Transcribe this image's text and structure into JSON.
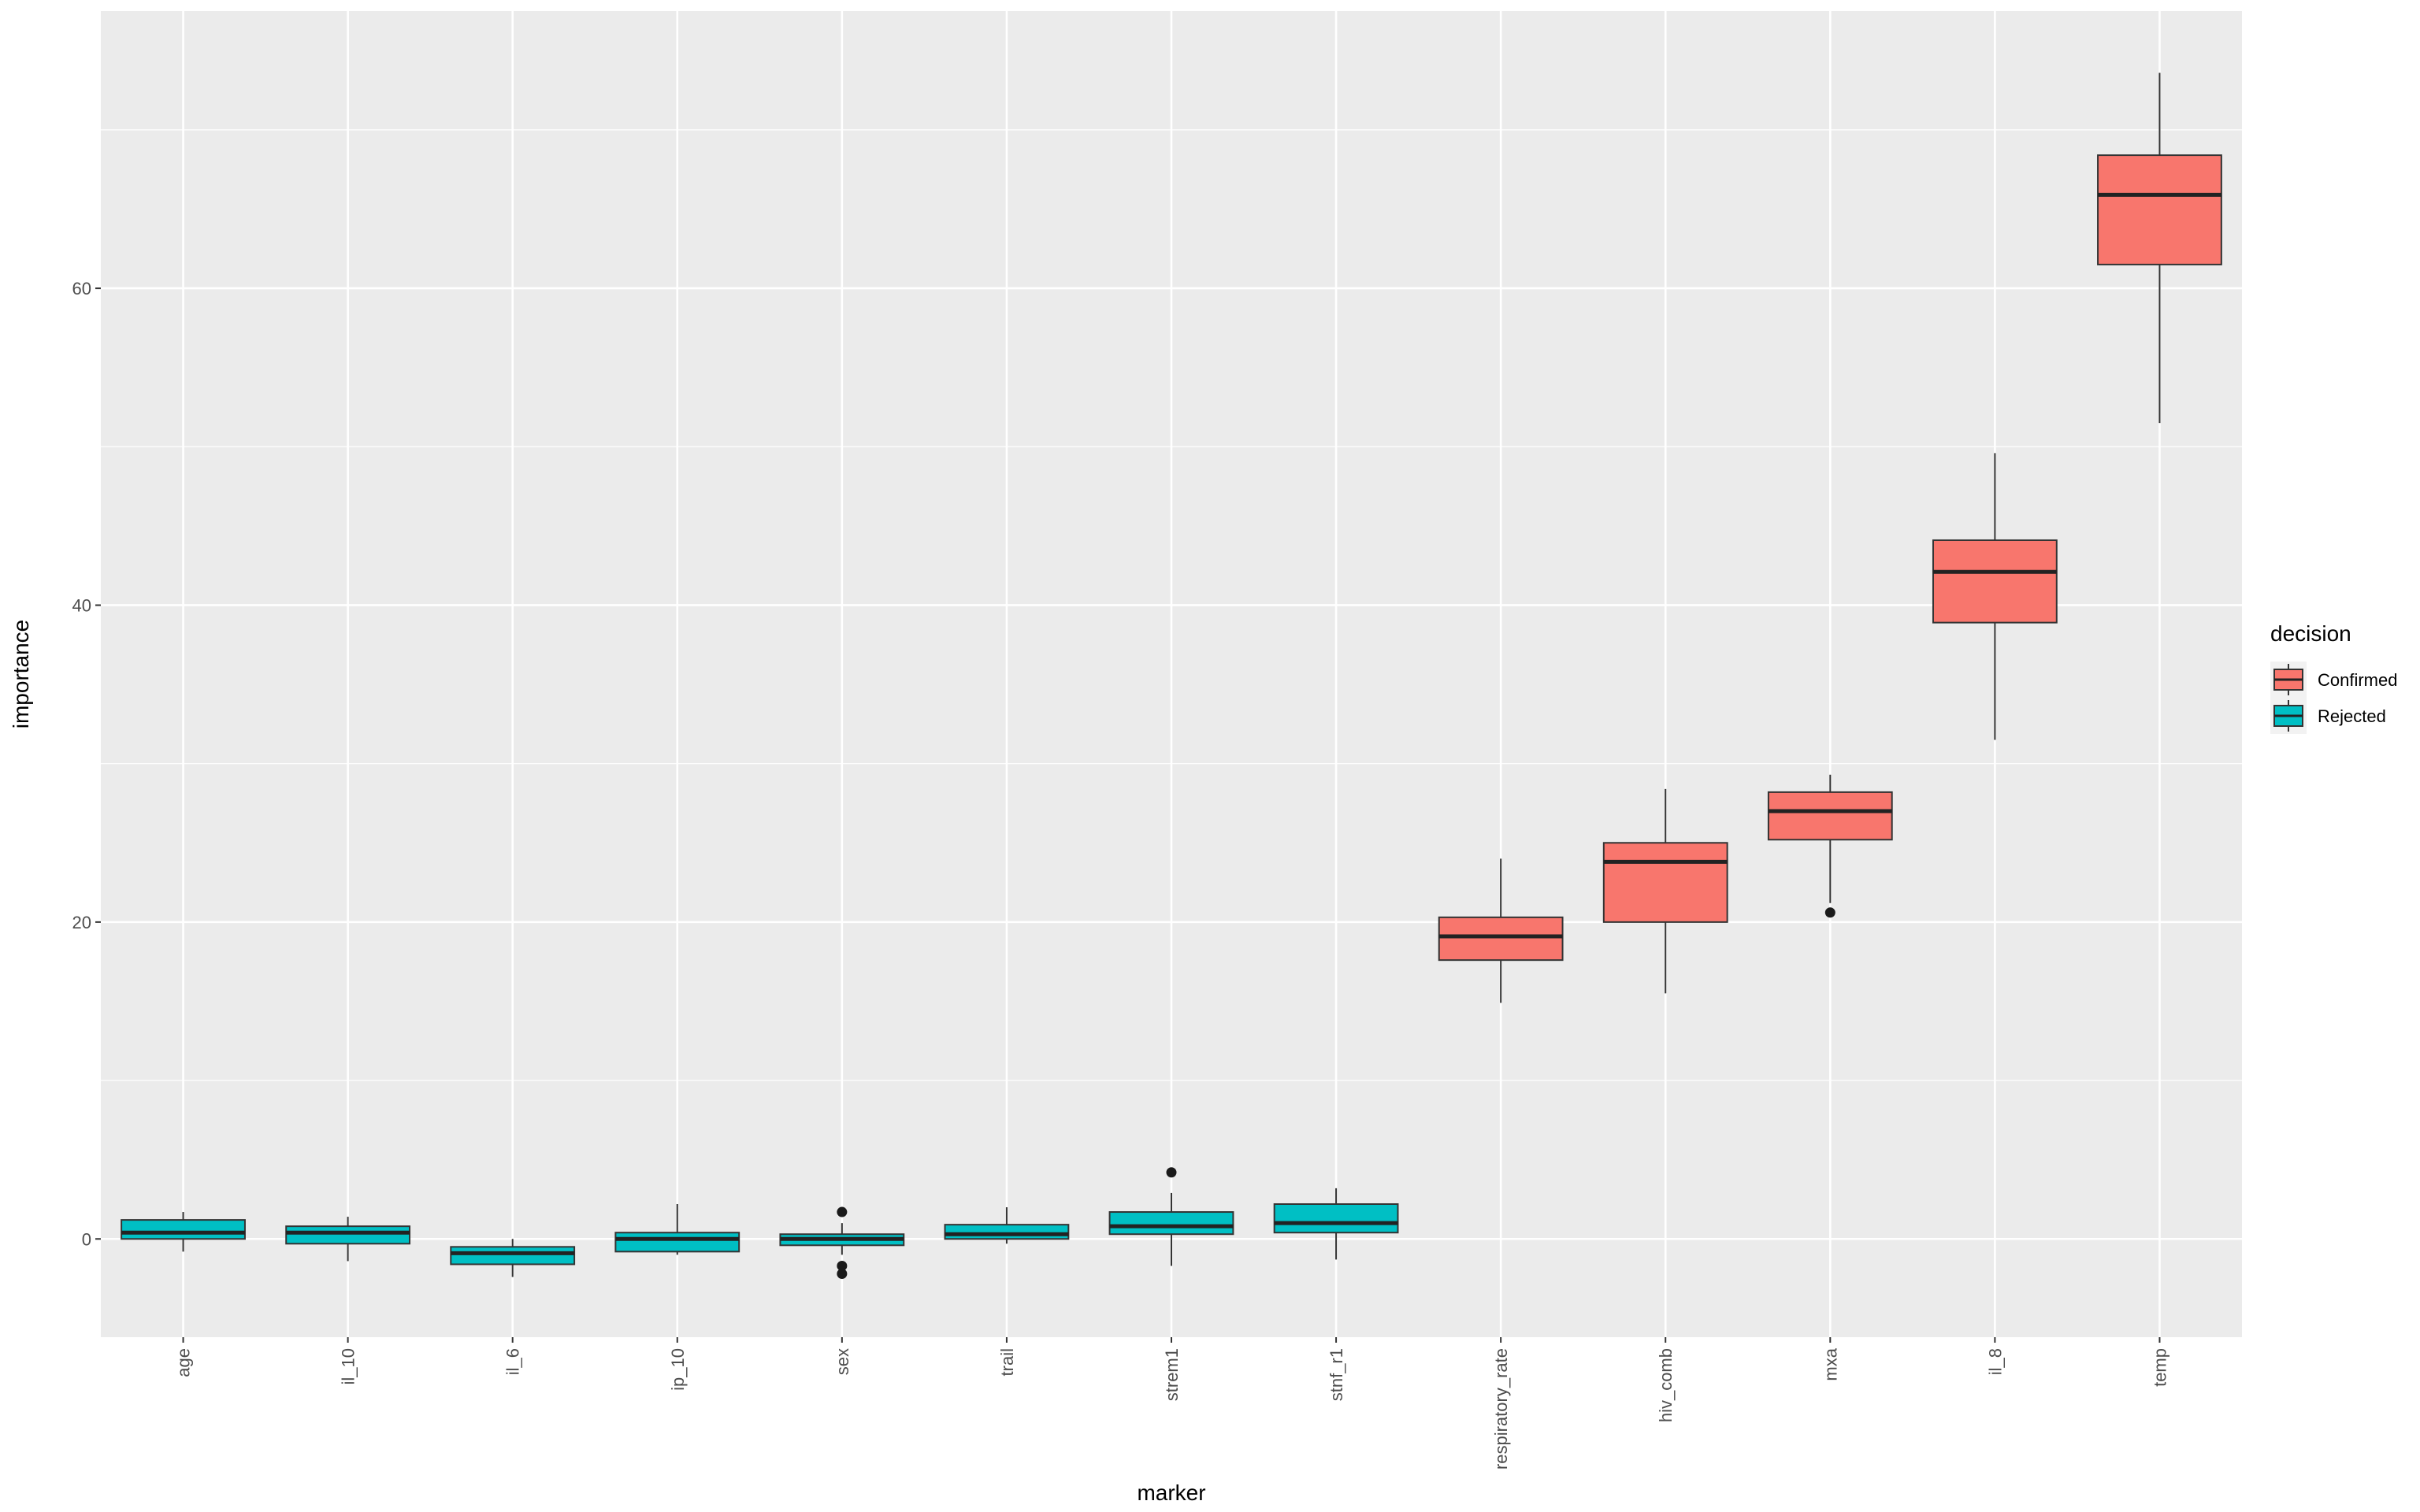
{
  "chart_data": {
    "type": "boxplot",
    "xlabel": "marker",
    "ylabel": "importance",
    "ylim": [
      -6.2,
      77.5
    ],
    "yticks": [
      0,
      20,
      40,
      60
    ],
    "grid": true,
    "legend_placement": "right",
    "legend": {
      "title": "decision",
      "entries": [
        {
          "label": "Confirmed",
          "color": "#F8766D"
        },
        {
          "label": "Rejected",
          "color": "#00BFC4"
        }
      ]
    },
    "categories": [
      "age",
      "il_10",
      "il_6",
      "ip_10",
      "sex",
      "trail",
      "strem1",
      "stnf_r1",
      "respiratory_rate",
      "hiv_comb",
      "mxa",
      "il_8",
      "temp"
    ],
    "boxes": [
      {
        "marker": "age",
        "decision": "Rejected",
        "min": -0.8,
        "q1": 0.0,
        "median": 0.4,
        "q3": 1.2,
        "max": 1.7,
        "outliers": []
      },
      {
        "marker": "il_10",
        "decision": "Rejected",
        "min": -1.4,
        "q1": -0.3,
        "median": 0.4,
        "q3": 0.8,
        "max": 1.4,
        "outliers": []
      },
      {
        "marker": "il_6",
        "decision": "Rejected",
        "min": -2.4,
        "q1": -1.6,
        "median": -0.9,
        "q3": -0.5,
        "max": 0.0,
        "outliers": []
      },
      {
        "marker": "ip_10",
        "decision": "Rejected",
        "min": -1.0,
        "q1": -0.8,
        "median": 0.0,
        "q3": 0.4,
        "max": 2.2,
        "outliers": []
      },
      {
        "marker": "sex",
        "decision": "Rejected",
        "min": -1.0,
        "q1": -0.4,
        "median": 0.0,
        "q3": 0.3,
        "max": 1.0,
        "outliers": [
          1.7,
          -1.7,
          -2.2
        ]
      },
      {
        "marker": "trail",
        "decision": "Rejected",
        "min": -0.3,
        "q1": 0.0,
        "median": 0.3,
        "q3": 0.9,
        "max": 2.0,
        "outliers": []
      },
      {
        "marker": "strem1",
        "decision": "Rejected",
        "min": -1.7,
        "q1": 0.3,
        "median": 0.8,
        "q3": 1.7,
        "max": 2.9,
        "outliers": [
          4.2
        ]
      },
      {
        "marker": "stnf_r1",
        "decision": "Rejected",
        "min": -1.3,
        "q1": 0.4,
        "median": 1.0,
        "q3": 2.2,
        "max": 3.2,
        "outliers": []
      },
      {
        "marker": "respiratory_rate",
        "decision": "Confirmed",
        "min": 14.9,
        "q1": 17.6,
        "median": 19.1,
        "q3": 20.3,
        "max": 24.0,
        "outliers": []
      },
      {
        "marker": "hiv_comb",
        "decision": "Confirmed",
        "min": 15.5,
        "q1": 20.0,
        "median": 23.8,
        "q3": 25.0,
        "max": 28.4,
        "outliers": []
      },
      {
        "marker": "mxa",
        "decision": "Confirmed",
        "min": 21.2,
        "q1": 25.2,
        "median": 27.0,
        "q3": 28.2,
        "max": 29.3,
        "outliers": [
          20.6
        ]
      },
      {
        "marker": "il_8",
        "decision": "Confirmed",
        "min": 31.5,
        "q1": 38.9,
        "median": 42.1,
        "q3": 44.1,
        "max": 49.6,
        "outliers": []
      },
      {
        "marker": "temp",
        "decision": "Confirmed",
        "min": 51.5,
        "q1": 61.5,
        "median": 65.9,
        "q3": 68.4,
        "max": 73.6,
        "outliers": []
      }
    ]
  }
}
